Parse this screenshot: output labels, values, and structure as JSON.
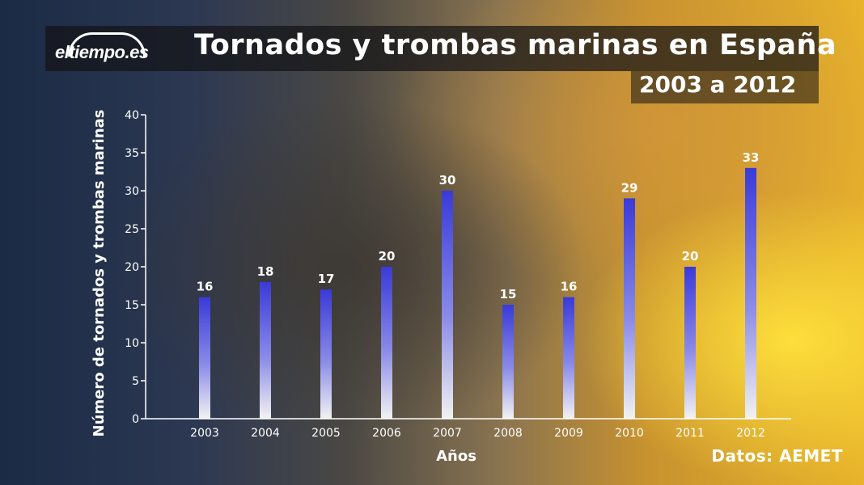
{
  "brand": {
    "logo_text": "eltiempo.es"
  },
  "header": {
    "title": "Tornados y trombas marinas en España",
    "subtitle": "2003 a 2012"
  },
  "footer": {
    "source": "Datos: AEMET"
  },
  "chart_data": {
    "type": "bar",
    "title": "Tornados y trombas marinas en España",
    "subtitle": "2003 a 2012",
    "xlabel": "Años",
    "ylabel": "Número de tornados y trombas marinas",
    "categories": [
      "2003",
      "2004",
      "2005",
      "2006",
      "2007",
      "2008",
      "2009",
      "2010",
      "2011",
      "2012"
    ],
    "values": [
      16,
      18,
      17,
      20,
      30,
      15,
      16,
      29,
      20,
      33
    ],
    "ylim": [
      0,
      40
    ],
    "yticks": [
      0,
      5,
      10,
      15,
      20,
      25,
      30,
      35,
      40
    ],
    "grid": false,
    "data_labels": true,
    "bar_color_top": "#3a3ad8",
    "bar_color_bottom": "#f2f2f2"
  }
}
